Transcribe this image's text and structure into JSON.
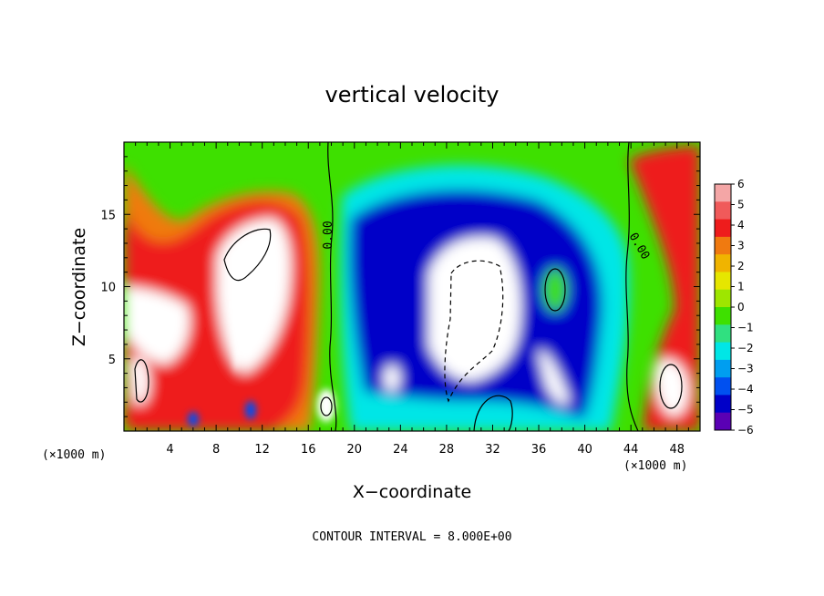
{
  "chart_data": {
    "type": "heatmap",
    "title": "vertical velocity",
    "xlabel": "X−coordinate",
    "ylabel": "Z−coordinate",
    "x_scale_left": "(×1000 m)",
    "x_scale_right": "(×1000 m)",
    "footer": "CONTOUR INTERVAL = 8.000E+00",
    "xlim": [
      0,
      50
    ],
    "ylim": [
      0,
      20
    ],
    "xticks": [
      4,
      8,
      12,
      16,
      20,
      24,
      28,
      32,
      36,
      40,
      44,
      48
    ],
    "yticks": [
      5,
      10,
      15
    ],
    "colorbar": {
      "ticks": [
        6,
        5,
        4,
        3,
        2,
        1,
        0,
        -1,
        -2,
        -3,
        -4,
        -5,
        -6
      ],
      "colors": [
        "#f4a6a6",
        "#f05a5a",
        "#ee1c1c",
        "#f07a10",
        "#f0b400",
        "#e6e600",
        "#9ee600",
        "#3ee000",
        "#30e080",
        "#00e6e6",
        "#009ef0",
        "#0050f0",
        "#0000c8",
        "#5a00b4"
      ]
    },
    "contour_labels": [
      "0.00",
      "0.00"
    ],
    "palette": {
      "positive_high": "#ffffff",
      "positive": "#ee1c1c",
      "weak": "#3ee000",
      "negative": "#0000c8",
      "negative_high": "#ffffff"
    }
  }
}
